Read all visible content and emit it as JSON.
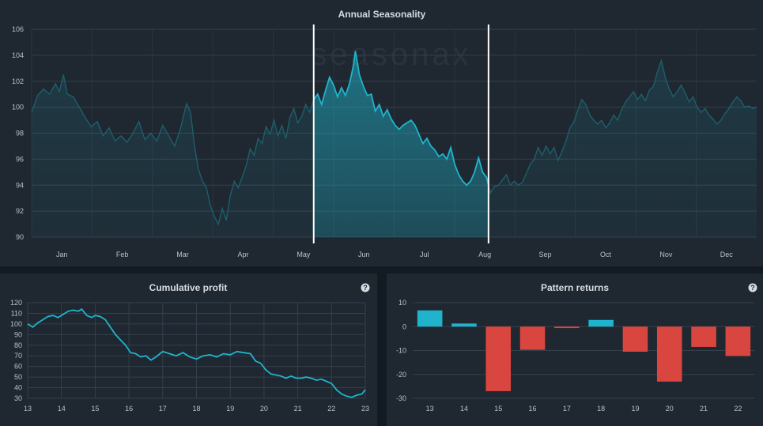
{
  "colors": {
    "accent": "#1fb4cc",
    "negative": "#d9463f",
    "panel": "#1f2730",
    "background": "#141a21"
  },
  "watermark": "seasonax",
  "season": {
    "title": "Annual Seasonality",
    "chart_data": {
      "type": "area",
      "title": "Annual Seasonality",
      "x_labels": [
        "Jan",
        "Feb",
        "Mar",
        "Apr",
        "May",
        "Jun",
        "Jul",
        "Aug",
        "Sep",
        "Oct",
        "Nov",
        "Dec"
      ],
      "y_ticks": [
        "90",
        "92",
        "94",
        "96",
        "98",
        "100",
        "102",
        "104",
        "106"
      ],
      "ylim": [
        90,
        106
      ],
      "xlim": [
        0,
        365
      ],
      "highlight_range": [
        142,
        230
      ],
      "grid": true,
      "points": [
        [
          0,
          99.6
        ],
        [
          3,
          100.9
        ],
        [
          6,
          101.4
        ],
        [
          9,
          101.0
        ],
        [
          12,
          101.8
        ],
        [
          14,
          101.2
        ],
        [
          16,
          102.5
        ],
        [
          18,
          101.0
        ],
        [
          21,
          100.8
        ],
        [
          24,
          100.0
        ],
        [
          27,
          99.2
        ],
        [
          30,
          98.5
        ],
        [
          33,
          98.9
        ],
        [
          36,
          97.8
        ],
        [
          39,
          98.4
        ],
        [
          42,
          97.4
        ],
        [
          45,
          97.8
        ],
        [
          48,
          97.3
        ],
        [
          51,
          98.0
        ],
        [
          54,
          98.9
        ],
        [
          57,
          97.5
        ],
        [
          60,
          98.0
        ],
        [
          63,
          97.4
        ],
        [
          66,
          98.6
        ],
        [
          69,
          97.8
        ],
        [
          72,
          97.0
        ],
        [
          75,
          98.4
        ],
        [
          78,
          100.3
        ],
        [
          80,
          99.6
        ],
        [
          82,
          97.0
        ],
        [
          84,
          95.2
        ],
        [
          86,
          94.3
        ],
        [
          88,
          93.8
        ],
        [
          90,
          92.4
        ],
        [
          92,
          91.6
        ],
        [
          94,
          91.0
        ],
        [
          96,
          92.2
        ],
        [
          98,
          91.3
        ],
        [
          100,
          93.2
        ],
        [
          102,
          94.3
        ],
        [
          104,
          93.8
        ],
        [
          106,
          94.6
        ],
        [
          108,
          95.5
        ],
        [
          110,
          96.8
        ],
        [
          112,
          96.3
        ],
        [
          114,
          97.6
        ],
        [
          116,
          97.2
        ],
        [
          118,
          98.5
        ],
        [
          120,
          97.9
        ],
        [
          122,
          99.0
        ],
        [
          124,
          97.8
        ],
        [
          126,
          98.6
        ],
        [
          128,
          97.6
        ],
        [
          130,
          99.2
        ],
        [
          132,
          99.9
        ],
        [
          134,
          98.8
        ],
        [
          136,
          99.3
        ],
        [
          138,
          100.2
        ],
        [
          140,
          99.6
        ],
        [
          142,
          100.6
        ],
        [
          144,
          101.0
        ],
        [
          146,
          100.2
        ],
        [
          148,
          101.3
        ],
        [
          150,
          102.3
        ],
        [
          152,
          101.7
        ],
        [
          154,
          100.8
        ],
        [
          156,
          101.5
        ],
        [
          158,
          100.9
        ],
        [
          160,
          101.8
        ],
        [
          162,
          103.2
        ],
        [
          163,
          104.3
        ],
        [
          165,
          102.5
        ],
        [
          167,
          101.6
        ],
        [
          169,
          100.9
        ],
        [
          171,
          101.0
        ],
        [
          173,
          99.7
        ],
        [
          175,
          100.2
        ],
        [
          177,
          99.3
        ],
        [
          179,
          99.8
        ],
        [
          181,
          99.1
        ],
        [
          183,
          98.6
        ],
        [
          185,
          98.3
        ],
        [
          187,
          98.6
        ],
        [
          189,
          98.8
        ],
        [
          191,
          99.0
        ],
        [
          193,
          98.6
        ],
        [
          195,
          97.9
        ],
        [
          197,
          97.2
        ],
        [
          199,
          97.6
        ],
        [
          201,
          97.0
        ],
        [
          203,
          96.7
        ],
        [
          205,
          96.2
        ],
        [
          207,
          96.4
        ],
        [
          209,
          96.0
        ],
        [
          211,
          96.9
        ],
        [
          213,
          95.6
        ],
        [
          215,
          94.8
        ],
        [
          217,
          94.3
        ],
        [
          219,
          94.0
        ],
        [
          221,
          94.3
        ],
        [
          223,
          95.0
        ],
        [
          225,
          96.1
        ],
        [
          227,
          95.0
        ],
        [
          229,
          94.6
        ],
        [
          231,
          93.4
        ],
        [
          233,
          93.9
        ],
        [
          235,
          94.0
        ],
        [
          237,
          94.4
        ],
        [
          239,
          94.8
        ],
        [
          241,
          94.0
        ],
        [
          243,
          94.3
        ],
        [
          245,
          94.0
        ],
        [
          247,
          94.2
        ],
        [
          249,
          94.9
        ],
        [
          251,
          95.6
        ],
        [
          253,
          96.0
        ],
        [
          255,
          96.9
        ],
        [
          257,
          96.3
        ],
        [
          259,
          97.0
        ],
        [
          261,
          96.4
        ],
        [
          263,
          96.9
        ],
        [
          265,
          95.9
        ],
        [
          267,
          96.6
        ],
        [
          269,
          97.4
        ],
        [
          271,
          98.4
        ],
        [
          273,
          98.9
        ],
        [
          275,
          99.8
        ],
        [
          277,
          100.6
        ],
        [
          279,
          100.2
        ],
        [
          281,
          99.4
        ],
        [
          283,
          99.0
        ],
        [
          285,
          98.7
        ],
        [
          287,
          99.0
        ],
        [
          289,
          98.4
        ],
        [
          291,
          98.8
        ],
        [
          293,
          99.4
        ],
        [
          295,
          99.0
        ],
        [
          297,
          99.8
        ],
        [
          299,
          100.4
        ],
        [
          301,
          100.8
        ],
        [
          303,
          101.2
        ],
        [
          305,
          100.6
        ],
        [
          307,
          101.0
        ],
        [
          309,
          100.5
        ],
        [
          311,
          101.3
        ],
        [
          313,
          101.6
        ],
        [
          315,
          102.7
        ],
        [
          317,
          103.6
        ],
        [
          319,
          102.3
        ],
        [
          321,
          101.4
        ],
        [
          323,
          100.8
        ],
        [
          325,
          101.2
        ],
        [
          327,
          101.7
        ],
        [
          329,
          101.1
        ],
        [
          331,
          100.4
        ],
        [
          333,
          100.8
        ],
        [
          335,
          100.0
        ],
        [
          337,
          99.6
        ],
        [
          339,
          99.9
        ],
        [
          341,
          99.4
        ],
        [
          343,
          99.1
        ],
        [
          345,
          98.7
        ],
        [
          347,
          99.0
        ],
        [
          349,
          99.5
        ],
        [
          351,
          99.9
        ],
        [
          353,
          100.4
        ],
        [
          355,
          100.8
        ],
        [
          357,
          100.5
        ],
        [
          359,
          100.0
        ],
        [
          361,
          100.1
        ],
        [
          363,
          99.9
        ],
        [
          365,
          100.0
        ]
      ]
    }
  },
  "cumulative": {
    "title": "Cumulative profit",
    "help": "?",
    "chart_data": {
      "type": "line",
      "title": "Cumulative profit",
      "x_ticks": [
        "13",
        "14",
        "15",
        "16",
        "17",
        "18",
        "19",
        "20",
        "21",
        "22",
        "23"
      ],
      "y_ticks": [
        "30",
        "40",
        "50",
        "60",
        "70",
        "80",
        "90",
        "100",
        "110",
        "120"
      ],
      "xlim": [
        13,
        23
      ],
      "ylim": [
        30,
        120
      ],
      "grid": true,
      "points": [
        [
          13.0,
          100
        ],
        [
          13.15,
          97
        ],
        [
          13.3,
          101
        ],
        [
          13.45,
          104
        ],
        [
          13.6,
          107
        ],
        [
          13.75,
          108
        ],
        [
          13.9,
          106
        ],
        [
          14.05,
          109
        ],
        [
          14.2,
          112
        ],
        [
          14.35,
          113
        ],
        [
          14.5,
          112
        ],
        [
          14.6,
          114
        ],
        [
          14.75,
          108
        ],
        [
          14.9,
          106
        ],
        [
          15.0,
          108
        ],
        [
          15.15,
          107
        ],
        [
          15.3,
          104
        ],
        [
          15.45,
          97
        ],
        [
          15.6,
          90
        ],
        [
          15.75,
          85
        ],
        [
          15.9,
          80
        ],
        [
          16.05,
          73
        ],
        [
          16.2,
          72
        ],
        [
          16.35,
          69
        ],
        [
          16.5,
          70
        ],
        [
          16.65,
          66
        ],
        [
          16.8,
          69
        ],
        [
          17.0,
          74
        ],
        [
          17.2,
          72
        ],
        [
          17.4,
          70
        ],
        [
          17.6,
          73
        ],
        [
          17.8,
          69
        ],
        [
          18.0,
          67
        ],
        [
          18.2,
          70
        ],
        [
          18.4,
          71
        ],
        [
          18.6,
          69
        ],
        [
          18.8,
          72
        ],
        [
          19.0,
          71
        ],
        [
          19.2,
          74
        ],
        [
          19.4,
          73
        ],
        [
          19.6,
          72
        ],
        [
          19.75,
          65
        ],
        [
          19.9,
          63
        ],
        [
          20.05,
          57
        ],
        [
          20.2,
          53
        ],
        [
          20.35,
          52
        ],
        [
          20.5,
          51
        ],
        [
          20.65,
          49
        ],
        [
          20.8,
          51
        ],
        [
          20.95,
          49
        ],
        [
          21.1,
          49
        ],
        [
          21.25,
          50
        ],
        [
          21.4,
          49
        ],
        [
          21.55,
          47
        ],
        [
          21.7,
          48
        ],
        [
          21.85,
          46
        ],
        [
          22.0,
          44
        ],
        [
          22.15,
          38
        ],
        [
          22.3,
          34
        ],
        [
          22.45,
          32
        ],
        [
          22.6,
          31
        ],
        [
          22.75,
          33
        ],
        [
          22.9,
          34
        ],
        [
          23.0,
          38
        ]
      ]
    }
  },
  "pattern": {
    "title": "Pattern returns",
    "help": "?",
    "chart_data": {
      "type": "bar",
      "title": "Pattern returns",
      "categories": [
        "13",
        "14",
        "15",
        "16",
        "17",
        "18",
        "19",
        "20",
        "21",
        "22"
      ],
      "values": [
        6.8,
        1.3,
        -27.0,
        -9.7,
        -0.6,
        2.8,
        -10.5,
        -23.0,
        -8.5,
        -12.3
      ],
      "y_ticks": [
        "10",
        "0",
        "-10",
        "-20",
        "-30"
      ],
      "ylim": [
        -30,
        10
      ],
      "grid": true
    }
  }
}
